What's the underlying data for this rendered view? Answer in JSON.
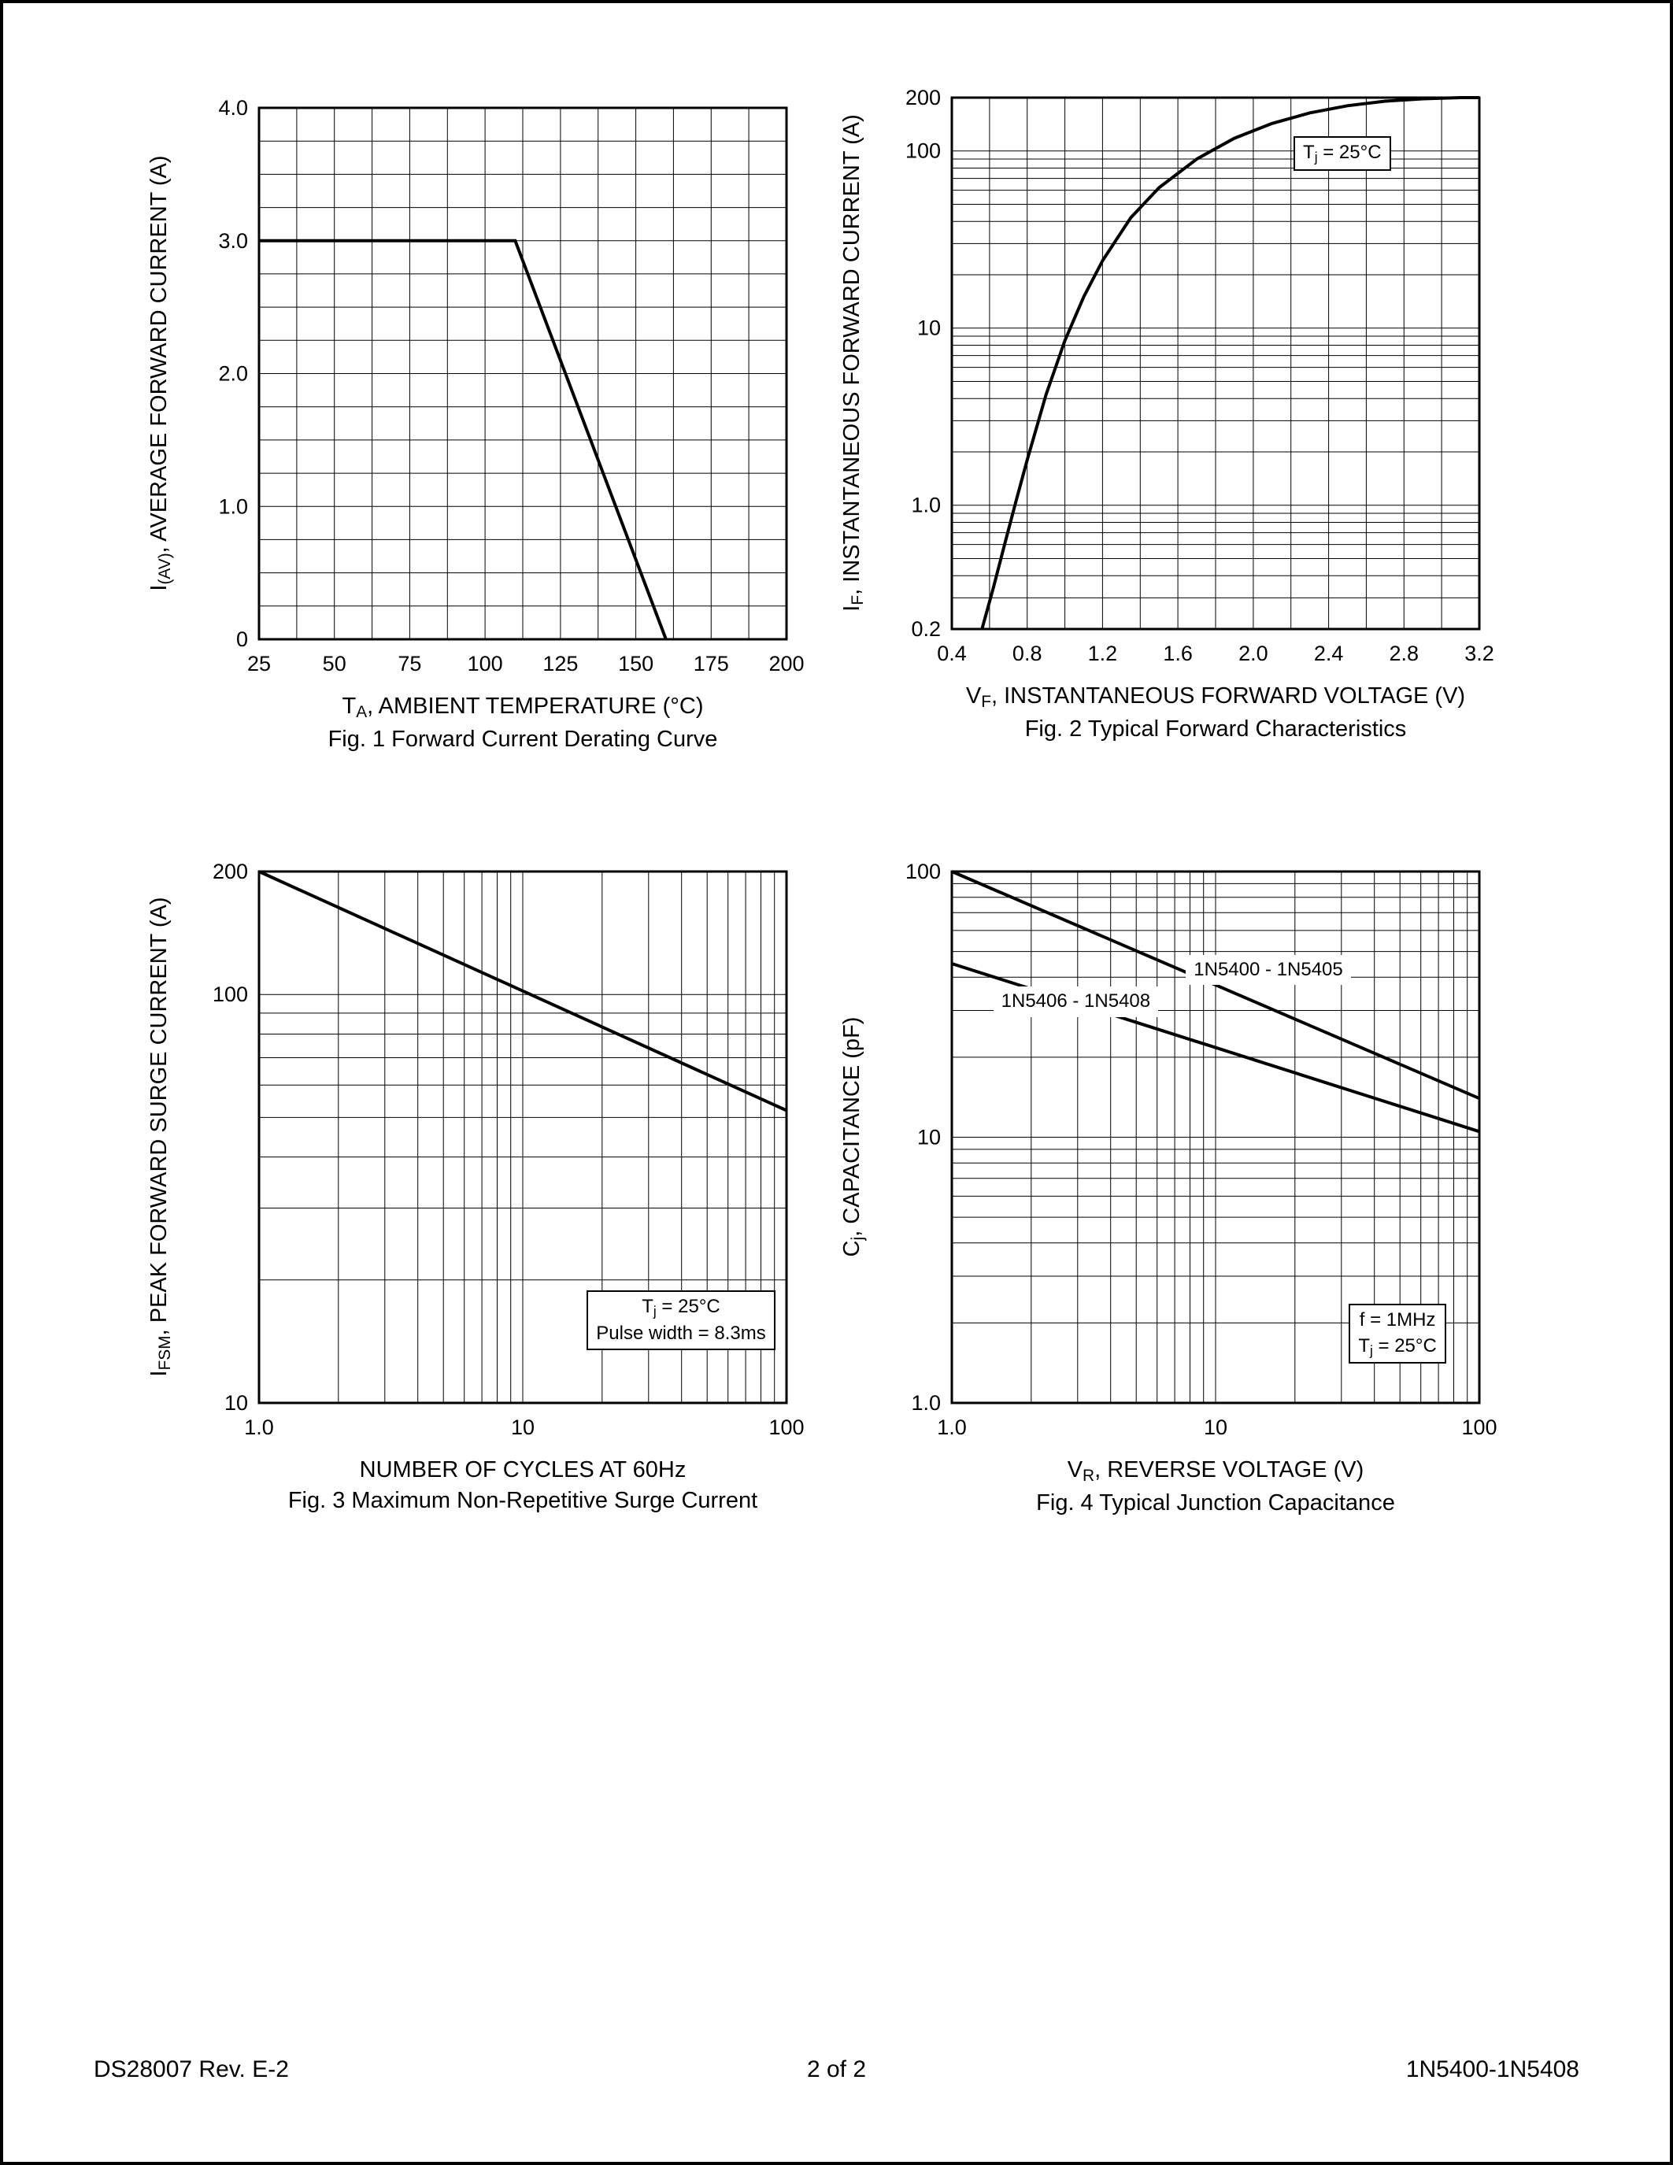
{
  "page": {
    "footer": {
      "left": "DS28007 Rev. E-2",
      "center": "2 of 2",
      "right": "1N5400-1N5408"
    }
  },
  "colors": {
    "ink": "#000000",
    "paper": "#ffffff"
  },
  "chart_data": [
    {
      "id": "fig1",
      "type": "line",
      "title": "Fig. 1  Forward Current Derating Curve",
      "xlabel": "T_{A}, AMBIENT TEMPERATURE (°C)",
      "ylabel": "I_{(AV)}, AVERAGE FORWARD CURRENT (A)",
      "x_axis": {
        "scale": "linear",
        "min": 25,
        "max": 200,
        "minor_step": 12.5,
        "ticks": [
          [
            25,
            "25"
          ],
          [
            50,
            "50"
          ],
          [
            75,
            "75"
          ],
          [
            100,
            "100"
          ],
          [
            125,
            "125"
          ],
          [
            150,
            "150"
          ],
          [
            175,
            "175"
          ],
          [
            200,
            "200"
          ]
        ]
      },
      "y_axis": {
        "scale": "linear",
        "min": 0,
        "max": 4,
        "minor_step": 0.25,
        "ticks": [
          [
            0,
            "0"
          ],
          [
            1,
            "1.0"
          ],
          [
            2,
            "2.0"
          ],
          [
            3,
            "3.0"
          ],
          [
            4,
            "4.0"
          ]
        ]
      },
      "series": [
        {
          "name": "average forward current derating",
          "points": [
            [
              25,
              3.0
            ],
            [
              110,
              3.0
            ],
            [
              160,
              0
            ]
          ]
        }
      ],
      "annotations": []
    },
    {
      "id": "fig2",
      "type": "line",
      "title": "Fig. 2  Typical Forward Characteristics",
      "xlabel": "V_{F}, INSTANTANEOUS FORWARD VOLTAGE (V)",
      "ylabel": "I_{F}, INSTANTANEOUS FORWARD CURRENT (A)",
      "x_axis": {
        "scale": "linear",
        "min": 0.4,
        "max": 3.2,
        "minor_step": 0.2,
        "ticks": [
          [
            0.4,
            "0.4"
          ],
          [
            0.8,
            "0.8"
          ],
          [
            1.2,
            "1.2"
          ],
          [
            1.6,
            "1.6"
          ],
          [
            2.0,
            "2.0"
          ],
          [
            2.4,
            "2.4"
          ],
          [
            2.8,
            "2.8"
          ],
          [
            3.2,
            "3.2"
          ]
        ]
      },
      "y_axis": {
        "scale": "log",
        "min": 0.2,
        "max": 200,
        "ticks": [
          [
            0.2,
            "0.2"
          ],
          [
            1,
            "1.0"
          ],
          [
            10,
            "10"
          ],
          [
            100,
            "100"
          ],
          [
            200,
            "200"
          ]
        ]
      },
      "series": [
        {
          "name": "instantaneous forward current",
          "points": [
            [
              0.56,
              0.2
            ],
            [
              0.62,
              0.34
            ],
            [
              0.68,
              0.6
            ],
            [
              0.74,
              1.05
            ],
            [
              0.8,
              1.8
            ],
            [
              0.9,
              4.2
            ],
            [
              1.0,
              8.5
            ],
            [
              1.1,
              15
            ],
            [
              1.2,
              24
            ],
            [
              1.35,
              42
            ],
            [
              1.5,
              62
            ],
            [
              1.7,
              90
            ],
            [
              1.9,
              118
            ],
            [
              2.1,
              143
            ],
            [
              2.3,
              164
            ],
            [
              2.5,
              180
            ],
            [
              2.7,
              191
            ],
            [
              2.9,
              197
            ],
            [
              3.1,
              200
            ],
            [
              3.2,
              200
            ]
          ]
        }
      ],
      "annotations": [
        {
          "name": "tj-25c-label",
          "text": [
            "T_{j} = 25°C"
          ],
          "fx": 0.74,
          "fy": 0.105,
          "boxed": true
        }
      ]
    },
    {
      "id": "fig3",
      "type": "line",
      "title": "Fig. 3  Maximum Non-Repetitive Surge Current",
      "xlabel": "NUMBER OF CYCLES AT 60Hz",
      "ylabel": "I_{FSM}, PEAK FORWARD SURGE CURRENT (A)",
      "x_axis": {
        "scale": "log",
        "min": 1,
        "max": 100,
        "ticks": [
          [
            1,
            "1.0"
          ],
          [
            10,
            "10"
          ],
          [
            100,
            "100"
          ]
        ]
      },
      "y_axis": {
        "scale": "log",
        "min": 10,
        "max": 200,
        "ticks": [
          [
            10,
            "10"
          ],
          [
            100,
            "100"
          ],
          [
            200,
            "200"
          ]
        ]
      },
      "series": [
        {
          "name": "peak forward surge current",
          "points": [
            [
              1,
              200
            ],
            [
              100,
              52
            ]
          ]
        }
      ],
      "annotations": [
        {
          "name": "surge-conditions-label",
          "text": [
            "T_{j} = 25°C",
            "Pulse width = 8.3ms"
          ],
          "fx": 0.8,
          "fy": 0.845,
          "boxed": true
        }
      ]
    },
    {
      "id": "fig4",
      "type": "line",
      "title": "Fig. 4  Typical Junction Capacitance",
      "xlabel": "V_{R}, REVERSE VOLTAGE (V)",
      "ylabel": "C_{j}, CAPACITANCE (pF)",
      "x_axis": {
        "scale": "log",
        "min": 1,
        "max": 100,
        "ticks": [
          [
            1,
            "1.0"
          ],
          [
            10,
            "10"
          ],
          [
            100,
            "100"
          ]
        ]
      },
      "y_axis": {
        "scale": "log",
        "min": 1,
        "max": 100,
        "ticks": [
          [
            1,
            "1.0"
          ],
          [
            10,
            "10"
          ],
          [
            100,
            "100"
          ]
        ]
      },
      "series": [
        {
          "name": "1N5400 - 1N5405",
          "points": [
            [
              1,
              100
            ],
            [
              100,
              14
            ]
          ]
        },
        {
          "name": "1N5406 - 1N5408",
          "points": [
            [
              1,
              45
            ],
            [
              100,
              10.5
            ]
          ]
        }
      ],
      "annotations": [
        {
          "name": "series-label-1n5400-1n5405",
          "text": [
            "1N5400 - 1N5405"
          ],
          "fx": 0.6,
          "fy": 0.185,
          "boxed": false
        },
        {
          "name": "series-label-1n5406-1n5408",
          "text": [
            "1N5406 - 1N5408"
          ],
          "fx": 0.235,
          "fy": 0.245,
          "boxed": false
        },
        {
          "name": "test-conditions-label",
          "text": [
            "f = 1MHz",
            "T_{j} = 25°C"
          ],
          "fx": 0.845,
          "fy": 0.87,
          "boxed": true
        }
      ]
    }
  ]
}
